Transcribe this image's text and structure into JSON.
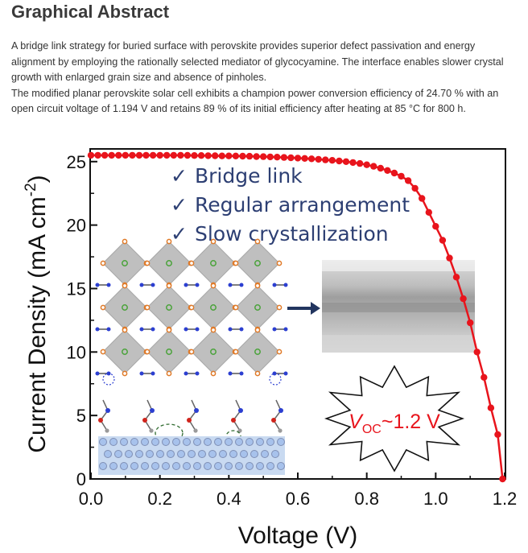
{
  "section": {
    "heading": "Graphical Abstract",
    "paragraph_1": "A bridge link strategy for buried surface with perovskite provides superior defect passivation and energy alignment by employing the rationally selected mediator of glycocyamine. The interface enables slower crystal growth with enlarged grain size and absence of pinholes.",
    "paragraph_2": "The modified planar perovskite solar cell exhibits a champion power conversion efficiency of 24.70 % with an open circuit voltage of 1.194 V and retains 89 % of its initial efficiency after heating at 85 °C for 800 h."
  },
  "figure": {
    "checklist": [
      "Bridge link",
      "Regular arrangement",
      "Slow crystallization"
    ],
    "check_glyph": "✓",
    "voc_label_main": "V",
    "voc_label_sub": "OC",
    "voc_label_value": "~1.2 V"
  },
  "colors": {
    "curve": "#e8141c",
    "checklist_text": "#2d3f73",
    "octahedra": "#bfbfbf",
    "substrate": "#c9daf1",
    "arrow": "#22355f"
  },
  "chart_data": {
    "type": "line",
    "xlabel": "Voltage (V)",
    "ylabel_main": "Current Density (mA cm",
    "ylabel_sup": "-2",
    "ylabel_close": ")",
    "xlim": [
      0.0,
      1.2
    ],
    "ylim": [
      0,
      26
    ],
    "xticks": [
      "0.0",
      "0.2",
      "0.4",
      "0.6",
      "0.8",
      "1.0",
      "1.2"
    ],
    "yticks": [
      "0",
      "5",
      "10",
      "15",
      "20",
      "25"
    ],
    "grid": false,
    "series": [
      {
        "x": [
          0.0,
          0.02,
          0.04,
          0.06,
          0.08,
          0.1,
          0.12,
          0.14,
          0.16,
          0.18,
          0.2,
          0.22,
          0.24,
          0.26,
          0.28,
          0.3,
          0.32,
          0.34,
          0.36,
          0.38,
          0.4,
          0.42,
          0.44,
          0.46,
          0.48,
          0.5,
          0.52,
          0.54,
          0.56,
          0.58,
          0.6,
          0.62,
          0.64,
          0.66,
          0.68,
          0.7,
          0.72,
          0.74,
          0.76,
          0.78,
          0.8,
          0.82,
          0.84,
          0.86,
          0.88,
          0.9,
          0.92,
          0.94,
          0.96,
          0.98,
          1.0,
          1.02,
          1.04,
          1.06,
          1.08,
          1.1,
          1.12,
          1.14,
          1.16,
          1.18,
          1.194
        ],
        "y": [
          25.5,
          25.5,
          25.5,
          25.5,
          25.5,
          25.5,
          25.5,
          25.5,
          25.5,
          25.5,
          25.5,
          25.5,
          25.5,
          25.5,
          25.49,
          25.48,
          25.48,
          25.47,
          25.46,
          25.45,
          25.45,
          25.44,
          25.43,
          25.42,
          25.4,
          25.39,
          25.37,
          25.35,
          25.33,
          25.3,
          25.28,
          25.25,
          25.22,
          25.18,
          25.14,
          25.1,
          25.05,
          25.0,
          24.93,
          24.85,
          24.75,
          24.63,
          24.48,
          24.3,
          24.1,
          23.85,
          23.5,
          22.9,
          22.1,
          21.0,
          19.9,
          18.8,
          17.4,
          15.9,
          14.2,
          12.3,
          10.0,
          8.0,
          5.6,
          3.5,
          0.0
        ]
      }
    ]
  }
}
